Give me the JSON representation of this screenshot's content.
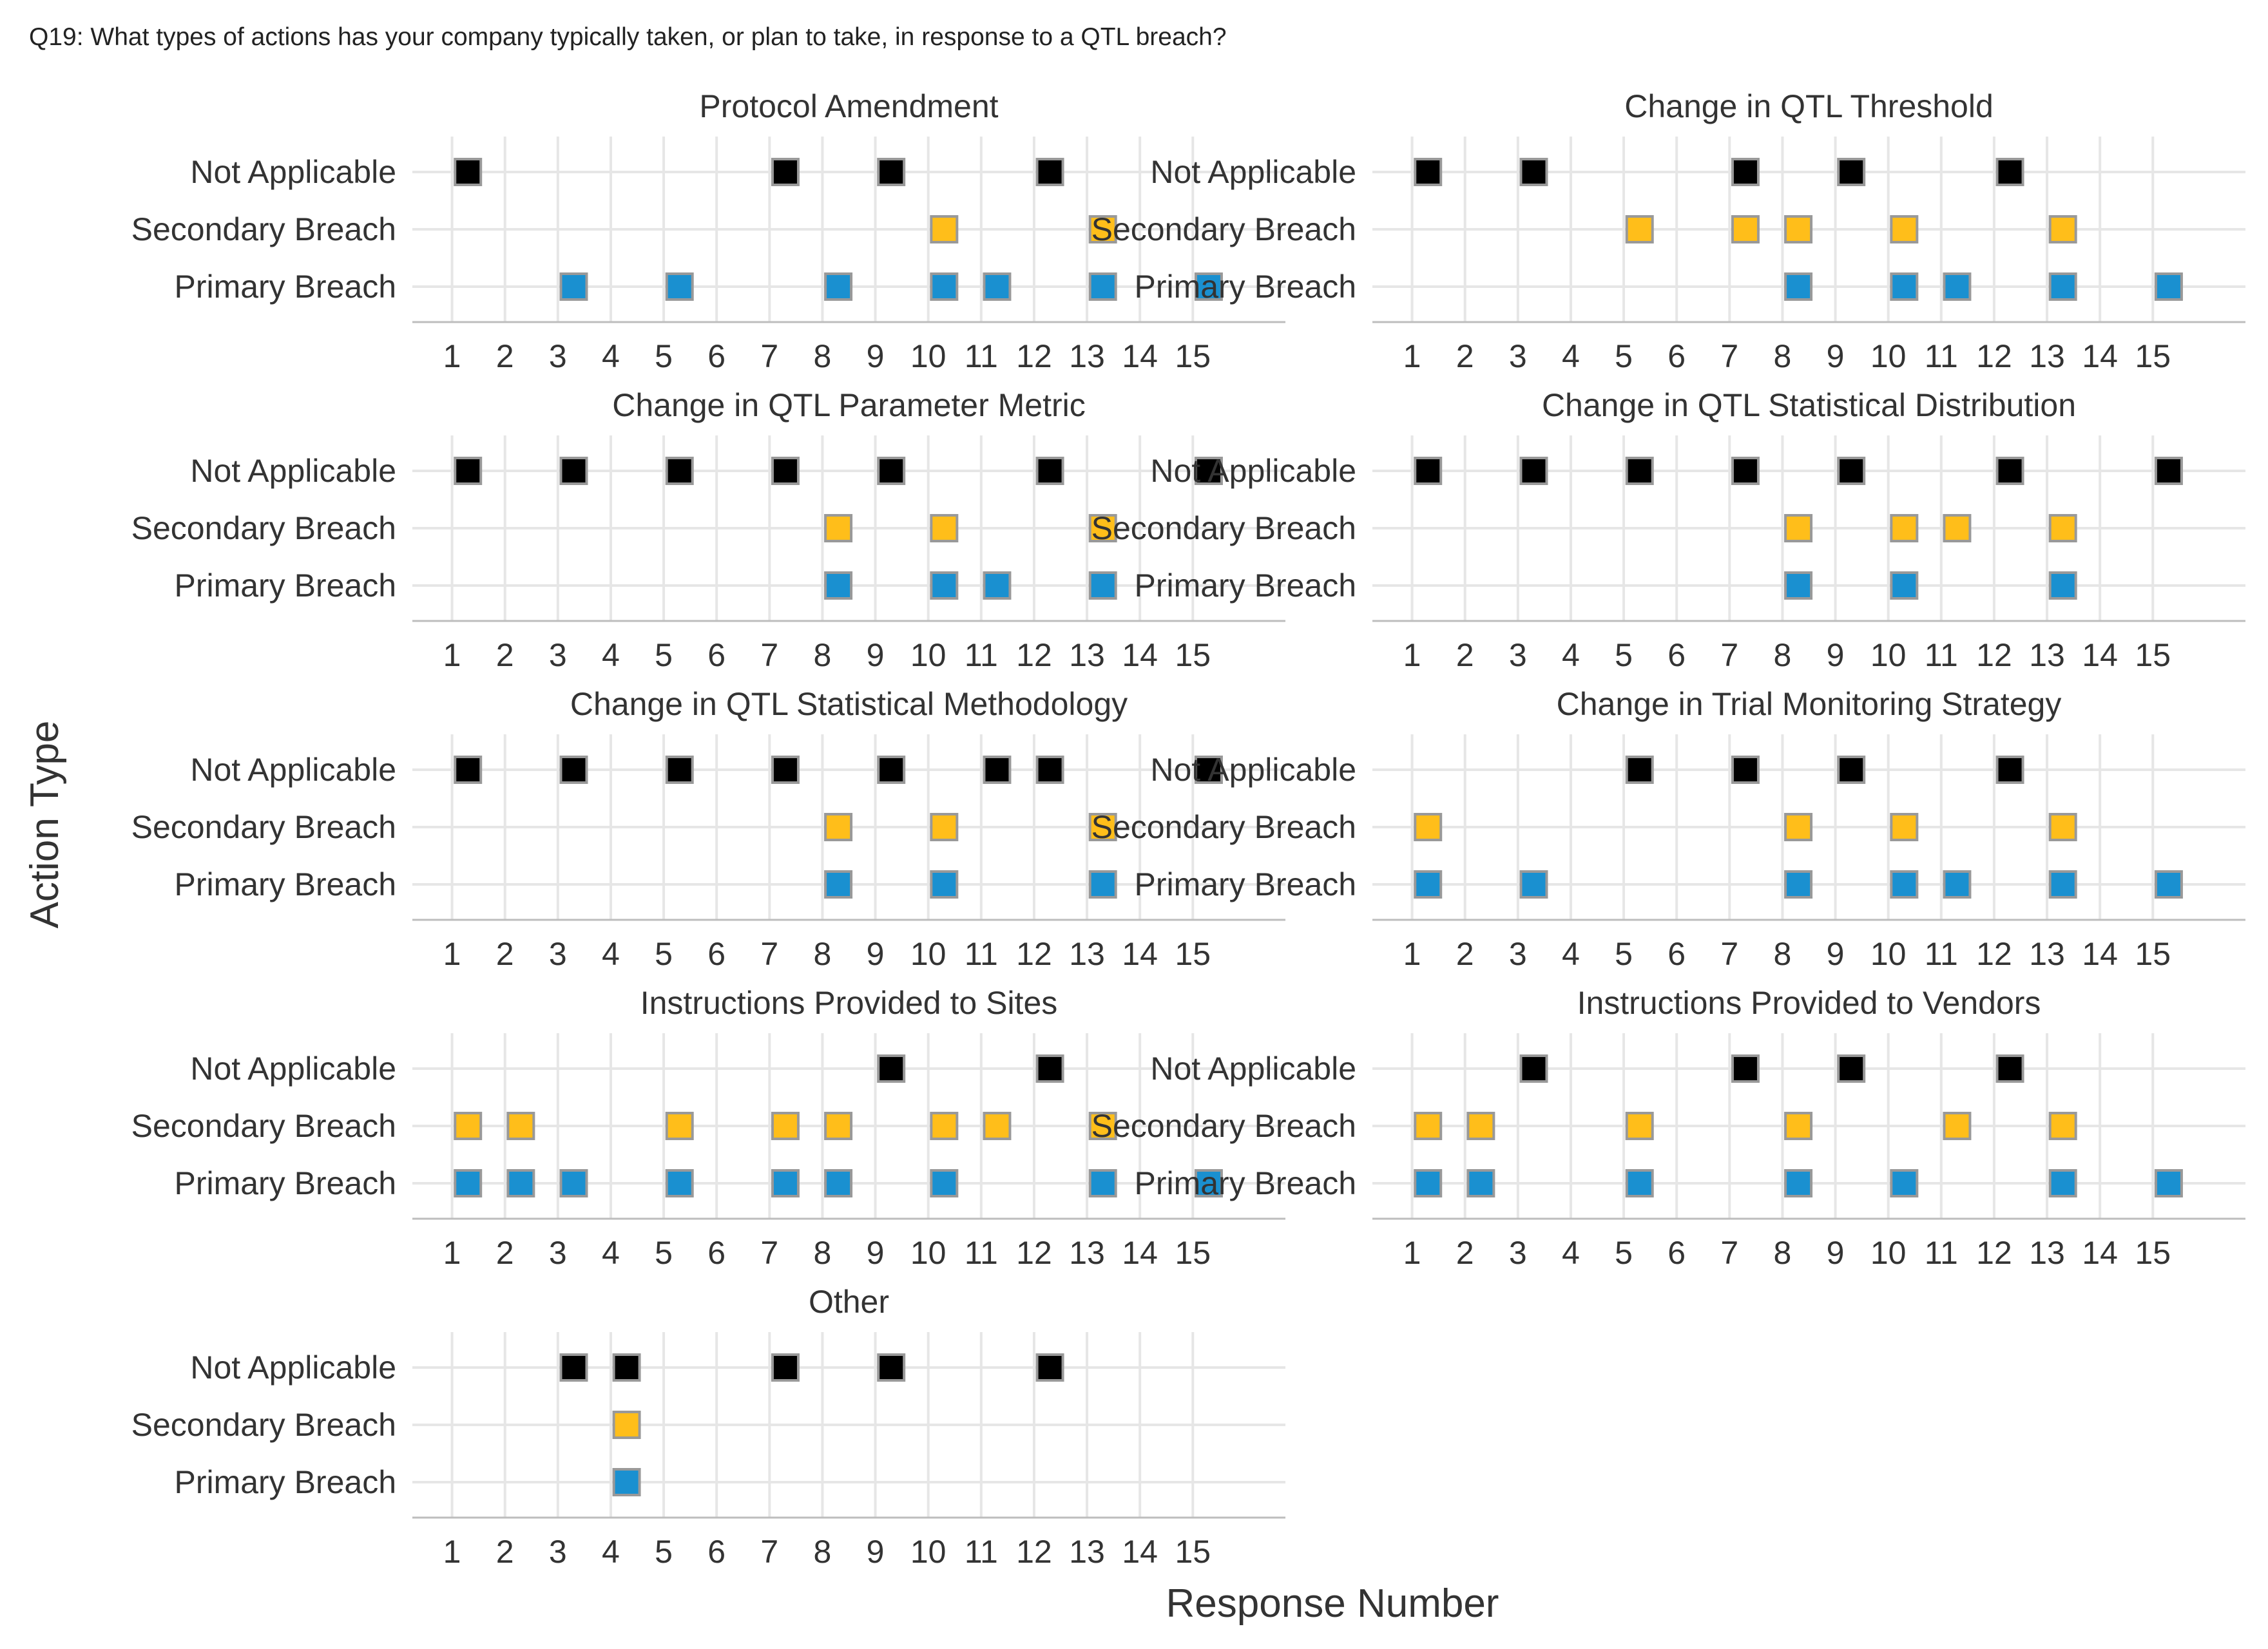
{
  "question": "Q19: What types of actions has your company typically taken, or plan to take, in response to a QTL breach?",
  "chart_data": {
    "type": "scatter",
    "title": "Q19: What types of actions has your company typically taken, or plan to take, in response to a QTL breach?",
    "xlabel": "Response Number",
    "ylabel": "Action Type",
    "x_ticks": [
      "1",
      "2",
      "3",
      "4",
      "5",
      "6",
      "7",
      "8",
      "9",
      "10",
      "11",
      "12",
      "13",
      "14",
      "15"
    ],
    "y_categories": [
      "Not Applicable",
      "Secondary Breach",
      "Primary Breach"
    ],
    "xlim": [
      0.25,
      16.75
    ],
    "grid": true,
    "legend": "none",
    "colors": {
      "Not Applicable": "#000000",
      "Secondary Breach": "#FFBE1A",
      "Primary Breach": "#1A90D0",
      "marker_border": "#999999",
      "grid": "#E6E6E6",
      "axis": "#BDBDBD",
      "text": "#333333"
    },
    "panels": [
      {
        "title": "Protocol Amendment",
        "series": [
          {
            "name": "Not Applicable",
            "x": [
              1,
              7,
              9,
              12
            ]
          },
          {
            "name": "Secondary Breach",
            "x": [
              10,
              13
            ]
          },
          {
            "name": "Primary Breach",
            "x": [
              3,
              5,
              8,
              10,
              11,
              13,
              15
            ]
          }
        ]
      },
      {
        "title": "Change in QTL Threshold",
        "series": [
          {
            "name": "Not Applicable",
            "x": [
              1,
              3,
              7,
              9,
              12
            ]
          },
          {
            "name": "Secondary Breach",
            "x": [
              5,
              7,
              8,
              10,
              13
            ]
          },
          {
            "name": "Primary Breach",
            "x": [
              8,
              10,
              11,
              13,
              15
            ]
          }
        ]
      },
      {
        "title": "Change in QTL Parameter Metric",
        "series": [
          {
            "name": "Not Applicable",
            "x": [
              1,
              3,
              5,
              7,
              9,
              12,
              15
            ]
          },
          {
            "name": "Secondary Breach",
            "x": [
              8,
              10,
              13
            ]
          },
          {
            "name": "Primary Breach",
            "x": [
              8,
              10,
              11,
              13
            ]
          }
        ]
      },
      {
        "title": "Change in QTL Statistical Distribution",
        "series": [
          {
            "name": "Not Applicable",
            "x": [
              1,
              3,
              5,
              7,
              9,
              12,
              15
            ]
          },
          {
            "name": "Secondary Breach",
            "x": [
              8,
              10,
              11,
              13
            ]
          },
          {
            "name": "Primary Breach",
            "x": [
              8,
              10,
              13
            ]
          }
        ]
      },
      {
        "title": "Change in QTL Statistical Methodology",
        "series": [
          {
            "name": "Not Applicable",
            "x": [
              1,
              3,
              5,
              7,
              9,
              11,
              12,
              15
            ]
          },
          {
            "name": "Secondary Breach",
            "x": [
              8,
              10,
              13
            ]
          },
          {
            "name": "Primary Breach",
            "x": [
              8,
              10,
              13
            ]
          }
        ]
      },
      {
        "title": "Change in Trial Monitoring Strategy",
        "series": [
          {
            "name": "Not Applicable",
            "x": [
              5,
              7,
              9,
              12
            ]
          },
          {
            "name": "Secondary Breach",
            "x": [
              1,
              8,
              10,
              13
            ]
          },
          {
            "name": "Primary Breach",
            "x": [
              1,
              3,
              8,
              10,
              11,
              13,
              15
            ]
          }
        ]
      },
      {
        "title": "Instructions Provided to Sites",
        "series": [
          {
            "name": "Not Applicable",
            "x": [
              9,
              12
            ]
          },
          {
            "name": "Secondary Breach",
            "x": [
              1,
              2,
              5,
              7,
              8,
              10,
              11,
              13
            ]
          },
          {
            "name": "Primary Breach",
            "x": [
              1,
              2,
              3,
              5,
              7,
              8,
              10,
              13,
              15
            ]
          }
        ]
      },
      {
        "title": "Instructions Provided to Vendors",
        "series": [
          {
            "name": "Not Applicable",
            "x": [
              3,
              7,
              9,
              12
            ]
          },
          {
            "name": "Secondary Breach",
            "x": [
              1,
              2,
              5,
              8,
              11,
              13
            ]
          },
          {
            "name": "Primary Breach",
            "x": [
              1,
              2,
              5,
              8,
              10,
              13,
              15
            ]
          }
        ]
      },
      {
        "title": "Other",
        "series": [
          {
            "name": "Not Applicable",
            "x": [
              3,
              4,
              7,
              9,
              12
            ]
          },
          {
            "name": "Secondary Breach",
            "x": [
              4
            ]
          },
          {
            "name": "Primary Breach",
            "x": [
              4
            ]
          }
        ]
      }
    ]
  }
}
